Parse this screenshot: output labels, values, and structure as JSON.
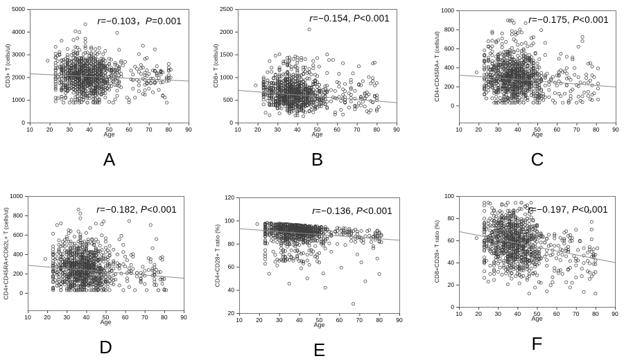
{
  "style": {
    "background": "#ffffff",
    "marker_shape": "open-circle",
    "marker_stroke": "#3f3f3f",
    "trendline_color": "#8c8c8c",
    "frame_color": "#737373",
    "tick_color": "#444444",
    "text_color": "#000000"
  },
  "chart_data": [
    {
      "type": "scatter",
      "panel_label": "A",
      "xlabel": "Age",
      "ylabel": "CD3+ T (cells/ul)",
      "xlim": [
        10,
        90
      ],
      "x_ticks": [
        10,
        20,
        30,
        40,
        50,
        60,
        70,
        80,
        90
      ],
      "y_ticks": [
        0,
        1000,
        2000,
        3000,
        4000,
        5000
      ],
      "y_top": 5000,
      "y_frame_min": 0,
      "annotation": {
        "r_sym": "r",
        "r_val": "=−0.103",
        "sep": "，",
        "p_sym": "P",
        "p_val": "=0.001"
      },
      "trendline": {
        "x1": 10,
        "y1": 2150,
        "x2": 90,
        "y2": 1830
      },
      "scatter": {
        "seed": 101,
        "n": 950,
        "x_cluster": {
          "mean": 38,
          "sd": 8,
          "min": 23,
          "max": 59
        },
        "x_tail": {
          "frac": 0.08,
          "min": 60,
          "max": 81
        },
        "y_model": "normal",
        "y_sd": 520,
        "y_skew_up": {
          "frac": 0.05,
          "min": 300,
          "max": 1600
        },
        "y_drop": {
          "frac": 0,
          "max": 0
        },
        "y_band_offset": 0,
        "y_clip": [
          880,
          4060
        ]
      },
      "notable_points": [
        [
          19,
          2720
        ],
        [
          33,
          4020
        ],
        [
          35,
          3980
        ],
        [
          38,
          4330
        ],
        [
          54,
          3950
        ],
        [
          67,
          3380
        ]
      ]
    },
    {
      "type": "scatter",
      "panel_label": "B",
      "xlabel": "Age",
      "ylabel": "CD8+ T (cells/ul)",
      "xlim": [
        10,
        90
      ],
      "x_ticks": [
        10,
        20,
        30,
        40,
        50,
        60,
        70,
        80,
        90
      ],
      "y_ticks": [
        0,
        500,
        1000,
        1500,
        2000,
        2500
      ],
      "y_top": 2500,
      "y_frame_min": 0,
      "annotation": {
        "r_sym": "r",
        "r_val": "=−0.154",
        "sep": ", ",
        "p_sym": "P",
        "p_val": "<0.001"
      },
      "trendline": {
        "x1": 10,
        "y1": 710,
        "x2": 90,
        "y2": 440
      },
      "scatter": {
        "seed": 202,
        "n": 950,
        "x_cluster": {
          "mean": 38,
          "sd": 8,
          "min": 23,
          "max": 59
        },
        "x_tail": {
          "frac": 0.08,
          "min": 60,
          "max": 81
        },
        "y_model": "normal",
        "y_sd": 185,
        "y_skew_up": {
          "frac": 0.13,
          "min": 120,
          "max": 720
        },
        "y_drop": {
          "frac": 0,
          "max": 0
        },
        "y_band_offset": 0,
        "y_clip": [
          140,
          1540
        ]
      },
      "notable_points": [
        [
          19,
          820
        ],
        [
          46,
          2050
        ],
        [
          55,
          1500
        ],
        [
          71,
          1240
        ],
        [
          80,
          870
        ]
      ]
    },
    {
      "type": "scatter",
      "panel_label": "C",
      "xlabel": "Age",
      "ylabel": "CD4+CD45RA+ T (cells/ul)",
      "xlim": [
        10,
        90
      ],
      "x_ticks": [
        10,
        20,
        30,
        40,
        50,
        60,
        70,
        80,
        90
      ],
      "y_ticks": [
        0,
        200,
        400,
        600,
        800,
        1000
      ],
      "y_top": 1000,
      "y_frame_min": -180,
      "annotation": {
        "r_sym": "r",
        "r_val": "=−0.175",
        "sep": ", ",
        "p_sym": "P",
        "p_val": "<0.001"
      },
      "trendline": {
        "x1": 10,
        "y1": 320,
        "x2": 90,
        "y2": 195
      },
      "scatter": {
        "seed": 303,
        "n": 950,
        "x_cluster": {
          "mean": 38,
          "sd": 8,
          "min": 23,
          "max": 59
        },
        "x_tail": {
          "frac": 0.08,
          "min": 60,
          "max": 81
        },
        "y_model": "normal",
        "y_sd": 135,
        "y_skew_up": {
          "frac": 0.1,
          "min": 90,
          "max": 420
        },
        "y_drop": {
          "frac": 0,
          "max": 0
        },
        "y_band_offset": 0,
        "y_clip": [
          30,
          895
        ]
      },
      "notable_points": [
        [
          19,
          350
        ],
        [
          36,
          890
        ],
        [
          38,
          868
        ],
        [
          27,
          760
        ],
        [
          73,
          720
        ]
      ]
    },
    {
      "type": "scatter",
      "panel_label": "D",
      "xlabel": "Age",
      "ylabel": "CD4+CD45RA+CD62L+ T (cells/ul)",
      "xlim": [
        10,
        90
      ],
      "x_ticks": [
        10,
        20,
        30,
        40,
        50,
        60,
        70,
        80,
        90
      ],
      "y_ticks": [
        0,
        200,
        400,
        600,
        800,
        1000
      ],
      "y_top": 1000,
      "y_frame_min": -180,
      "annotation": {
        "r_sym": "r",
        "r_val": "=−0.182",
        "sep": ", ",
        "p_sym": "P",
        "p_val": "<0.001"
      },
      "trendline": {
        "x1": 10,
        "y1": 285,
        "x2": 90,
        "y2": 152
      },
      "scatter": {
        "seed": 404,
        "n": 950,
        "x_cluster": {
          "mean": 38,
          "sd": 8,
          "min": 23,
          "max": 59
        },
        "x_tail": {
          "frac": 0.08,
          "min": 60,
          "max": 81
        },
        "y_model": "normal",
        "y_sd": 122,
        "y_skew_up": {
          "frac": 0.09,
          "min": 90,
          "max": 400
        },
        "y_drop": {
          "frac": 0,
          "max": 0
        },
        "y_band_offset": 0,
        "y_clip": [
          28,
          865
        ]
      },
      "notable_points": [
        [
          19,
          350
        ],
        [
          36,
          860
        ],
        [
          25,
          700
        ],
        [
          48,
          710
        ],
        [
          73,
          700
        ]
      ]
    },
    {
      "type": "scatter",
      "panel_label": "E",
      "xlabel": "Age",
      "ylabel": "CD4+CD28+ T ratio (%)",
      "xlim": [
        10,
        90
      ],
      "x_ticks": [
        10,
        20,
        30,
        40,
        50,
        60,
        70,
        80,
        90
      ],
      "y_ticks": [
        20,
        40,
        60,
        80,
        100,
        120
      ],
      "y_top": 120,
      "y_frame_min": 20,
      "annotation": {
        "r_sym": "r",
        "r_val": "=−0.136",
        "sep": ", ",
        "p_sym": "P",
        "p_val": "<0.001"
      },
      "trendline": {
        "x1": 10,
        "y1": 93,
        "x2": 90,
        "y2": 83
      },
      "scatter": {
        "seed": 505,
        "n": 950,
        "x_cluster": {
          "mean": 38,
          "sd": 8,
          "min": 23,
          "max": 59
        },
        "x_tail": {
          "frac": 0.08,
          "min": 60,
          "max": 81
        },
        "y_model": "topband",
        "y_sd": 7,
        "y_skew_up": {
          "frac": 0,
          "min": 0,
          "max": 0
        },
        "y_drop": {
          "frac": 0.13,
          "max": 30
        },
        "y_band_offset": 7,
        "y_clip": [
          42,
          99.8
        ]
      },
      "notable_points": [
        [
          19,
          97
        ],
        [
          67,
          28
        ],
        [
          35,
          45.5
        ],
        [
          53,
          42
        ],
        [
          44,
          50
        ]
      ]
    },
    {
      "type": "scatter",
      "panel_label": "F",
      "xlabel": "Age",
      "ylabel": "CD8+CD28+ T ratio (%)",
      "xlim": [
        10,
        90
      ],
      "x_ticks": [
        10,
        20,
        30,
        40,
        50,
        60,
        70,
        80,
        90
      ],
      "y_ticks": [
        0,
        20,
        40,
        60,
        80,
        100
      ],
      "y_top": 100,
      "y_frame_min": 0,
      "annotation": {
        "r_sym": "r",
        "r_val": "=−0.197",
        "sep": ", ",
        "p_sym": "P",
        "p_val": "<0.001"
      },
      "trendline": {
        "x1": 10,
        "y1": 68,
        "x2": 90,
        "y2": 40
      },
      "scatter": {
        "seed": 606,
        "n": 950,
        "x_cluster": {
          "mean": 38,
          "sd": 8,
          "min": 23,
          "max": 59
        },
        "x_tail": {
          "frac": 0.08,
          "min": 60,
          "max": 81
        },
        "y_model": "normal",
        "y_sd": 14.5,
        "y_skew_up": {
          "frac": 0,
          "min": 0,
          "max": 0
        },
        "y_drop": {
          "frac": 0,
          "max": 0
        },
        "y_band_offset": 0,
        "y_clip": [
          12,
          94
        ]
      },
      "notable_points": [
        [
          19,
          62
        ],
        [
          46,
          12
        ],
        [
          42,
          94
        ],
        [
          55,
          14
        ],
        [
          74,
          13.5
        ],
        [
          67,
          17.5
        ]
      ]
    }
  ]
}
